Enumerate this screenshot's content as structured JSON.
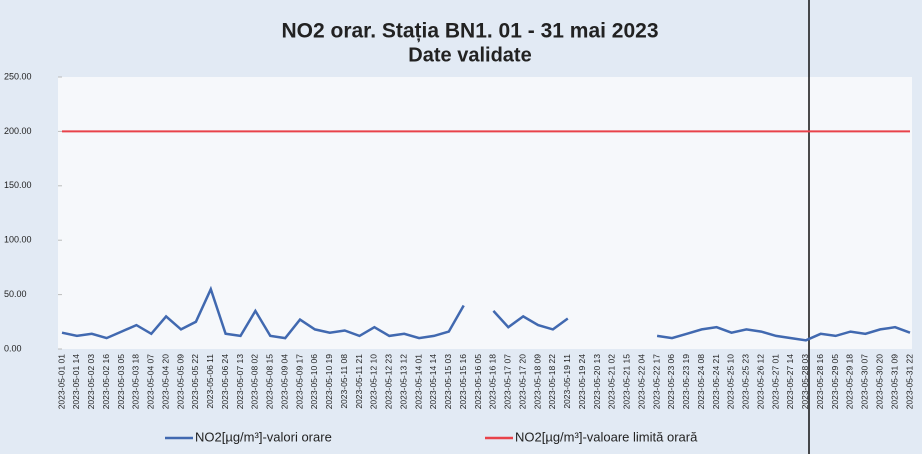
{
  "chart_data": {
    "type": "line",
    "title": "NO2 orar. Stația BN1. 01 - 31 mai 2023",
    "subtitle": "Date validate",
    "categories": [
      "2023-05-01 01",
      "2023-05-01 14",
      "2023-05-02 03",
      "2023-05-02 16",
      "2023-05-03 05",
      "2023-05-03 18",
      "2023-05-04 07",
      "2023-05-04 20",
      "2023-05-05 09",
      "2023-05-05 22",
      "2023-05-06 11",
      "2023-05-06 24",
      "2023-05-07 13",
      "2023-05-08 02",
      "2023-05-08 15",
      "2023-05-09 04",
      "2023-05-09 17",
      "2023-05-10 06",
      "2023-05-10 19",
      "2023-05-11 08",
      "2023-05-11 21",
      "2023-05-12 10",
      "2023-05-12 23",
      "2023-05-13 12",
      "2023-05-14 01",
      "2023-05-14 14",
      "2023-05-15 03",
      "2023-05-15 16",
      "2023-05-16 05",
      "2023-05-16 18",
      "2023-05-17 07",
      "2023-05-17 20",
      "2023-05-18 09",
      "2023-05-18 22",
      "2023-05-19 11",
      "2023-05-19 24",
      "2023-05-20 13",
      "2023-05-21 02",
      "2023-05-21 15",
      "2023-05-22 04",
      "2023-05-22 17",
      "2023-05-23 06",
      "2023-05-23 19",
      "2023-05-24 08",
      "2023-05-24 21",
      "2023-05-25 10",
      "2023-05-25 23",
      "2023-05-26 12",
      "2023-05-27 01",
      "2023-05-27 14",
      "2023-05-28 03",
      "2023-05-28 16",
      "2023-05-29 05",
      "2023-05-29 18",
      "2023-05-30 07",
      "2023-05-30 20",
      "2023-05-31 09",
      "2023-05-31 22"
    ],
    "series": [
      {
        "name": "NO2[µg/m³]-valori orare",
        "color": "#4169b0",
        "values": [
          15,
          12,
          14,
          10,
          16,
          22,
          14,
          30,
          18,
          25,
          55,
          14,
          12,
          35,
          12,
          10,
          27,
          18,
          15,
          17,
          12,
          20,
          12,
          14,
          10,
          12,
          16,
          40,
          null,
          35,
          20,
          30,
          22,
          18,
          28,
          null,
          null,
          null,
          null,
          null,
          12,
          10,
          14,
          18,
          20,
          15,
          18,
          16,
          12,
          10,
          8,
          14,
          12,
          16,
          14,
          18,
          20,
          15
        ]
      },
      {
        "name": "NO2[µg/m³]-valoare limită orară",
        "color": "#e8424a",
        "values": [
          200,
          200,
          200,
          200,
          200,
          200,
          200,
          200,
          200,
          200,
          200,
          200,
          200,
          200,
          200,
          200,
          200,
          200,
          200,
          200,
          200,
          200,
          200,
          200,
          200,
          200,
          200,
          200,
          200,
          200,
          200,
          200,
          200,
          200,
          200,
          200,
          200,
          200,
          200,
          200,
          200,
          200,
          200,
          200,
          200,
          200,
          200,
          200,
          200,
          200,
          200,
          200,
          200,
          200,
          200,
          200,
          200,
          200
        ]
      }
    ],
    "ylim": [
      0,
      250
    ],
    "yticks": [
      {
        "value": 0,
        "label": "0.00"
      },
      {
        "value": 50,
        "label": "50.00"
      },
      {
        "value": 100,
        "label": "100.00"
      },
      {
        "value": 150,
        "label": "150.00"
      },
      {
        "value": 200,
        "label": "200.00"
      },
      {
        "value": 250,
        "label": "250.00"
      }
    ],
    "legend": "bottom"
  }
}
